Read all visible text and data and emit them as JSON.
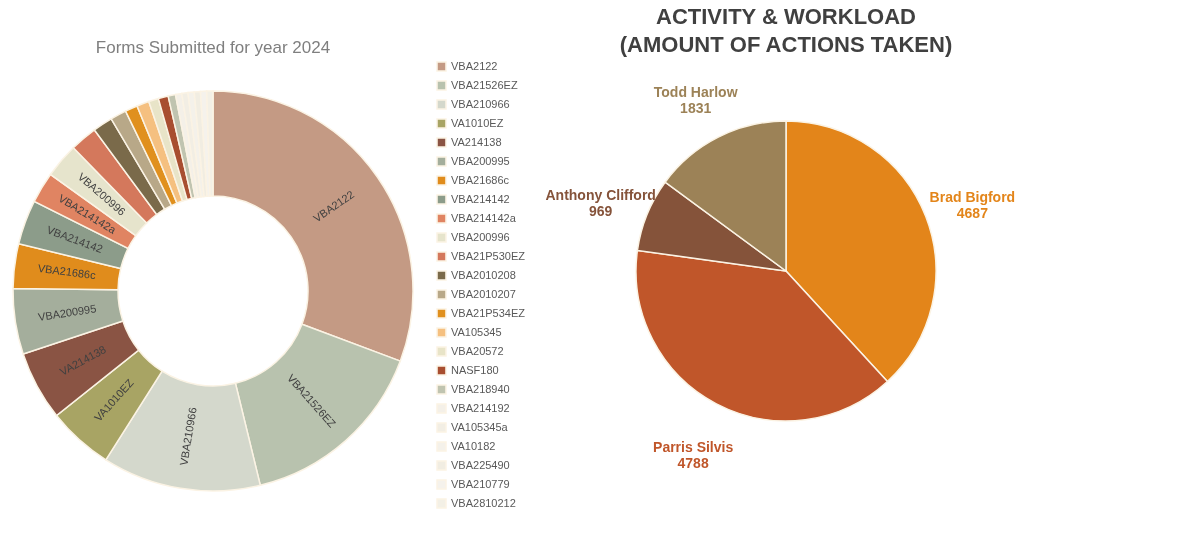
{
  "chart_data": [
    {
      "type": "donut",
      "title": "Forms Submitted for year 2024",
      "legend": "right",
      "categories": [
        "VBA2122",
        "VBA21526EZ",
        "VBA210966",
        "VA1010EZ",
        "VA214138",
        "VBA200995",
        "VBA21686c",
        "VBA214142",
        "VBA214142a",
        "VBA200996",
        "VBA21P530EZ",
        "VBA2010208",
        "VBA2010207",
        "VBA21P534EZ",
        "VA105345",
        "VBA20572",
        "NASF180",
        "VBA218940",
        "VBA214192",
        "VA105345a",
        "VA10182",
        "VBA225490",
        "VBA210779",
        "VBA2810212"
      ],
      "values": [
        30.7,
        15.5,
        12.8,
        5.3,
        5.6,
        5.3,
        3.6,
        3.6,
        2.5,
        2.8,
        2.2,
        1.6,
        1.3,
        1.0,
        1.0,
        0.8,
        0.8,
        0.6,
        0.5,
        0.5,
        0.5,
        0.5,
        0.5,
        0.5
      ],
      "colors": [
        "#c49a84",
        "#b8c2ae",
        "#d4d8cc",
        "#a8a464",
        "#8a5444",
        "#a4ae9c",
        "#e08c1c",
        "#8c9c8a",
        "#e08462",
        "#e6e4cc",
        "#d4785c",
        "#7a6a4a",
        "#b8a888",
        "#e0901e",
        "#f5c080",
        "#e8e4c8",
        "#a84e30",
        "#c0c4b0",
        "#f4f0e8",
        "#f2eee4",
        "#f4f1ea",
        "#f1ede2",
        "#f5f2ec",
        "#f3f0e6"
      ],
      "annotations": [
        {
          "text": "VBA2122",
          "x": "VBA2122"
        },
        {
          "text": "VBA21526EZ",
          "x": "VBA21526EZ"
        },
        {
          "text": "VBA210966",
          "x": "VBA210966"
        },
        {
          "text": "VA1010EZ",
          "x": "VA1010EZ"
        },
        {
          "text": "VA214138",
          "x": "VA214138"
        },
        {
          "text": "VBA200995",
          "x": "VBA200995"
        },
        {
          "text": "VBA21686c",
          "x": "VBA21686c"
        },
        {
          "text": "VBA214142",
          "x": "VBA214142"
        },
        {
          "text": "VBA214142a",
          "x": "VBA214142a"
        },
        {
          "text": "VBA200996",
          "x": "VBA200996"
        }
      ]
    },
    {
      "type": "pie",
      "title": "ACTIVITY & WORKLOAD\n(AMOUNT OF ACTIONS TAKEN)",
      "legend": false,
      "data_labels": true,
      "categories": [
        "Brad Bigford",
        "Parris Silvis",
        "Anthony Clifford",
        "Todd Harlow"
      ],
      "values": [
        4687,
        4788,
        969,
        1831
      ],
      "colors": [
        "#e3851a",
        "#c0562a",
        "#85533a",
        "#9c8257"
      ]
    }
  ]
}
